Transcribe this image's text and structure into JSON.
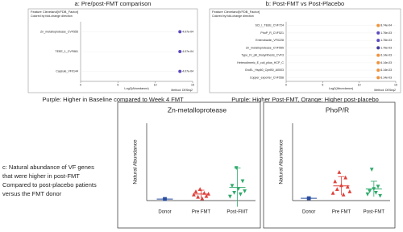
{
  "chart_data": [
    {
      "type": "dot",
      "title": "a: Pre/post-FMT comparison",
      "header": "Feature Cleveland[VFDB_Factor]",
      "subheader": "Colored by fold-change direction",
      "categories": [
        "Zn_metalloprotease_CVF555",
        "TEEE_1_CVF861",
        "Capsule_VF0144"
      ],
      "values": [
        13.3,
        13.3,
        13.3
      ],
      "value_labels": [
        "4.07e-04",
        "4.07e-04",
        "4.07e-04"
      ],
      "colors": [
        "#5b4bbf",
        "#5b4bbf",
        "#5b4bbf"
      ],
      "xlim": [
        0,
        15
      ],
      "xticks": [
        0,
        5,
        10,
        15
      ],
      "xlabel": "Log2(Abundance)",
      "note": "Method: DESeq2",
      "caption": "Purple: Higher in Baseline compared to Week 4 FMT"
    },
    {
      "type": "dot",
      "title": "b: Post-FMT vs Post-Placebo",
      "header": "Feature Cleveland[VFDB_Factor]",
      "subheader": "Colored by fold-change direction",
      "categories": [
        "SCI_I_TEEE_CVF724",
        "PhoP_R_CVF521",
        "Enterobactin_VF0228",
        "Zn_metalloprotease_CVF555",
        "Type_IV_pili_biosynthesis_CVF3",
        "Heterodimeric_E_coli_pilus_HCP_C",
        "GroEL_Hsp60_CpnB0_A0003",
        "Copper_exporter_CVF558"
      ],
      "values": [
        12.6,
        12.6,
        12.6,
        12.6,
        12.6,
        12.6,
        12.6,
        12.6
      ],
      "value_labels": [
        "8.74e-04",
        "1.76e-03",
        "1.76e-03",
        "1.76e-03",
        "6.14e-03",
        "6.14e-03",
        "6.14e-03",
        "6.14e-03"
      ],
      "colors": [
        "#f0923a",
        "#5b4bbf",
        "#5b4bbf",
        "#3f3a9a",
        "#f0923a",
        "#f0923a",
        "#f0923a",
        "#f0923a"
      ],
      "xlim": [
        0,
        15
      ],
      "xticks": [
        0,
        5,
        10,
        15
      ],
      "xlabel": "Log2(Abundance)",
      "note": "Method: DESeq2",
      "caption": "Purple: Higher Post-FMT, Orange: Higher post-placebo"
    },
    {
      "type": "groups",
      "title": "Zn-metalloprotease",
      "ylabel": "Natural Abundance",
      "ylim": [
        0,
        100
      ],
      "categories": [
        "Donor",
        "Pre FMT",
        "Post-FMT"
      ],
      "groups": [
        {
          "color": "#2a4fa0",
          "marker": "square",
          "values": [
            2
          ],
          "mean": 2,
          "error": 0
        },
        {
          "color": "#e0403a",
          "marker": "triangle-up",
          "values": [
            8,
            12,
            5,
            15,
            3,
            10,
            6,
            9
          ],
          "mean": 8.5,
          "error": 5
        },
        {
          "color": "#2eaa6a",
          "marker": "triangle-down",
          "values": [
            5,
            19,
            10,
            42,
            15,
            8,
            25,
            12
          ],
          "mean": 17,
          "error": 25
        }
      ]
    },
    {
      "type": "groups",
      "title": "PhoP/R",
      "ylabel": "Natural Abundance",
      "ylim": [
        0,
        100
      ],
      "categories": [
        "Donor",
        "Pre FMT",
        "Post-FMT"
      ],
      "groups": [
        {
          "color": "#2a4fa0",
          "marker": "square",
          "values": [
            3
          ],
          "mean": 3,
          "error": 0
        },
        {
          "color": "#e0403a",
          "marker": "triangle-up",
          "values": [
            10,
            25,
            15,
            37,
            20,
            8,
            30,
            18,
            12
          ],
          "mean": 19,
          "error": 12
        },
        {
          "color": "#2eaa6a",
          "marker": "triangle-down",
          "values": [
            8,
            12,
            40,
            15,
            10,
            18,
            6
          ],
          "mean": 15,
          "error": 10
        }
      ]
    }
  ],
  "caption_c": [
    "c: Natural abundance of VF genes",
    "that were higher in post-FMT",
    "Compared to post-placebo patients",
    "versus the FMT donor"
  ]
}
